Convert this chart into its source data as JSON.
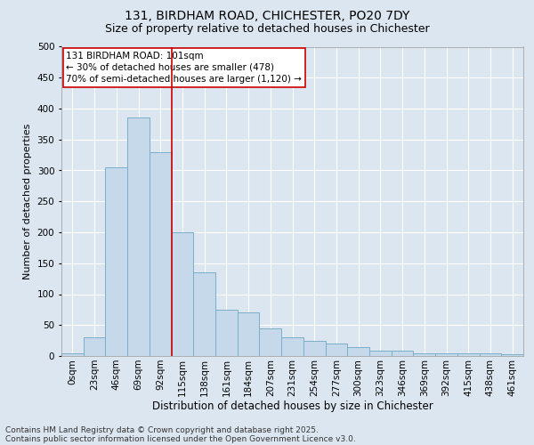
{
  "title1": "131, BIRDHAM ROAD, CHICHESTER, PO20 7DY",
  "title2": "Size of property relative to detached houses in Chichester",
  "xlabel": "Distribution of detached houses by size in Chichester",
  "ylabel": "Number of detached properties",
  "bar_labels": [
    "0sqm",
    "23sqm",
    "46sqm",
    "69sqm",
    "92sqm",
    "115sqm",
    "138sqm",
    "161sqm",
    "184sqm",
    "207sqm",
    "231sqm",
    "254sqm",
    "277sqm",
    "300sqm",
    "323sqm",
    "346sqm",
    "369sqm",
    "392sqm",
    "415sqm",
    "438sqm",
    "461sqm"
  ],
  "bar_values": [
    5,
    30,
    305,
    385,
    330,
    200,
    135,
    75,
    70,
    45,
    30,
    25,
    20,
    15,
    8,
    8,
    5,
    5,
    5,
    5,
    3
  ],
  "bar_color": "#c6d9ea",
  "bar_edgecolor": "#7aaec8",
  "property_line_x": 4.5,
  "annotation_text": "131 BIRDHAM ROAD: 101sqm\n← 30% of detached houses are smaller (478)\n70% of semi-detached houses are larger (1,120) →",
  "annotation_box_color": "#ffffff",
  "annotation_box_edgecolor": "#cc0000",
  "vline_color": "#cc0000",
  "ylim": [
    0,
    500
  ],
  "yticks": [
    0,
    50,
    100,
    150,
    200,
    250,
    300,
    350,
    400,
    450,
    500
  ],
  "background_color": "#dce6f0",
  "plot_bg_color": "#dce6f0",
  "grid_color": "#ffffff",
  "footer1": "Contains HM Land Registry data © Crown copyright and database right 2025.",
  "footer2": "Contains public sector information licensed under the Open Government Licence v3.0.",
  "title1_fontsize": 10,
  "title2_fontsize": 9,
  "xlabel_fontsize": 8.5,
  "ylabel_fontsize": 8,
  "tick_fontsize": 7.5,
  "annotation_fontsize": 7.5,
  "footer_fontsize": 6.5
}
